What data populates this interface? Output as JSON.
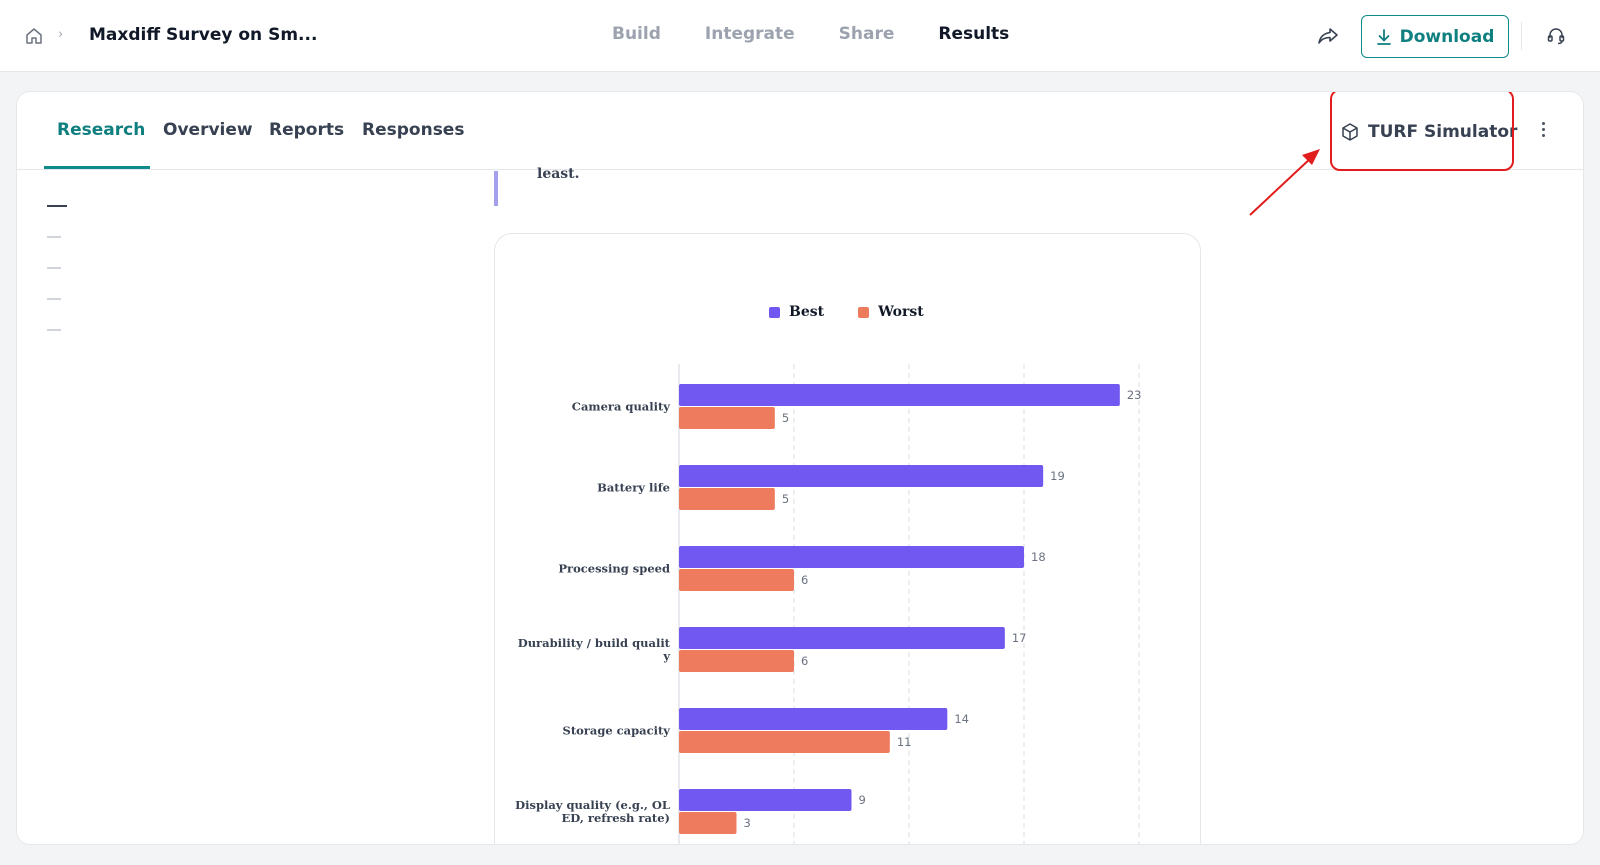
{
  "header": {
    "survey_title": "Maxdiff Survey on Sm...",
    "breadcrumb_separator": "›",
    "nav_tabs": [
      {
        "label": "Build",
        "active": false
      },
      {
        "label": "Integrate",
        "active": false
      },
      {
        "label": "Share",
        "active": false
      },
      {
        "label": "Results",
        "active": true
      }
    ],
    "download_label": "Download",
    "icons": {
      "home": "home-icon",
      "share": "share-icon",
      "download": "download-icon",
      "support": "headset-icon"
    }
  },
  "results": {
    "tabs": [
      {
        "label": "Research",
        "active": true
      },
      {
        "label": "Overview",
        "active": false
      },
      {
        "label": "Reports",
        "active": false
      },
      {
        "label": "Responses",
        "active": false
      }
    ],
    "turf_label": "TURF Simulator",
    "question_tail": "least."
  },
  "colors": {
    "accent": "#0f8a8a",
    "best": "#7158f0",
    "worst": "#ef7b5e",
    "highlight": "#e11d1d"
  },
  "chart_data": {
    "type": "bar",
    "orientation": "horizontal",
    "categories": [
      [
        "Camera quality"
      ],
      [
        "Battery life"
      ],
      [
        "Processing speed"
      ],
      [
        "Durability / build qualit",
        "y"
      ],
      [
        "Storage capacity"
      ],
      [
        "Display quality (e.g., OL",
        "ED, refresh rate)"
      ]
    ],
    "series": [
      {
        "name": "Best",
        "values": [
          23,
          19,
          18,
          17,
          14,
          9
        ]
      },
      {
        "name": "Worst",
        "values": [
          5,
          5,
          6,
          6,
          11,
          3
        ]
      }
    ],
    "legend": "top-center",
    "xlim": [
      0,
      24
    ],
    "grid_step": 6,
    "grid": true
  }
}
